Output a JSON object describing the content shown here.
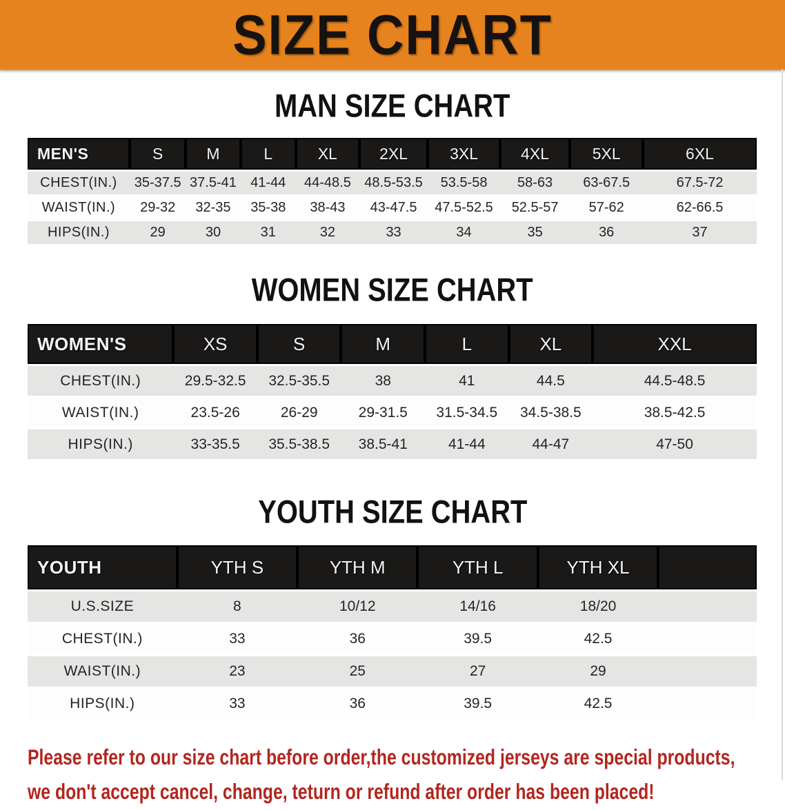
{
  "banner": {
    "title": "SIZE CHART",
    "bg_color": "#E6831E",
    "text_color": "#161210"
  },
  "sections": [
    {
      "name": "men",
      "title": "MAN SIZE CHART",
      "header_label": "MEN'S",
      "columns": [
        "S",
        "M",
        "L",
        "XL",
        "2XL",
        "3XL",
        "4XL",
        "5XL",
        "6XL"
      ],
      "rows": [
        {
          "label": "CHEST(IN.)",
          "values": [
            "35-37.5",
            "37.5-41",
            "41-44",
            "44-48.5",
            "48.5-53.5",
            "53.5-58",
            "58-63",
            "63-67.5",
            "67.5-72"
          ]
        },
        {
          "label": "WAIST(IN.)",
          "values": [
            "29-32",
            "32-35",
            "35-38",
            "38-43",
            "43-47.5",
            "47.5-52.5",
            "52.5-57",
            "57-62",
            "62-66.5"
          ]
        },
        {
          "label": "HIPS(IN.)",
          "values": [
            "29",
            "30",
            "31",
            "32",
            "33",
            "34",
            "35",
            "36",
            "37"
          ]
        }
      ]
    },
    {
      "name": "women",
      "title": "WOMEN SIZE CHART",
      "header_label": "WOMEN'S",
      "columns": [
        "XS",
        "S",
        "M",
        "L",
        "XL",
        "XXL"
      ],
      "rows": [
        {
          "label": "CHEST(IN.)",
          "values": [
            "29.5-32.5",
            "32.5-35.5",
            "38",
            "41",
            "44.5",
            "44.5-48.5"
          ]
        },
        {
          "label": "WAIST(IN.)",
          "values": [
            "23.5-26",
            "26-29",
            "29-31.5",
            "31.5-34.5",
            "34.5-38.5",
            "38.5-42.5"
          ]
        },
        {
          "label": "HIPS(IN.)",
          "values": [
            "33-35.5",
            "35.5-38.5",
            "38.5-41",
            "41-44",
            "44-47",
            "47-50"
          ]
        }
      ]
    },
    {
      "name": "youth",
      "title": "YOUTH SIZE CHART",
      "header_label": "YOUTH",
      "columns": [
        "YTH S",
        "YTH M",
        "YTH L",
        "YTH XL"
      ],
      "rows": [
        {
          "label": "U.S.SIZE",
          "values": [
            "8",
            "10/12",
            "14/16",
            "18/20"
          ]
        },
        {
          "label": "CHEST(IN.)",
          "values": [
            "33",
            "36",
            "39.5",
            "42.5"
          ]
        },
        {
          "label": "WAIST(IN.)",
          "values": [
            "23",
            "25",
            "27",
            "29"
          ]
        },
        {
          "label": "HIPS(IN.)",
          "values": [
            "33",
            "36",
            "39.5",
            "42.5"
          ]
        }
      ]
    }
  ],
  "disclaimer": {
    "color": "#B2261F",
    "lines": [
      "Please refer to our size chart before order,the customized jerseys are special products,",
      "we don't accept cancel, change, teturn or refund after order has been placed!"
    ]
  }
}
